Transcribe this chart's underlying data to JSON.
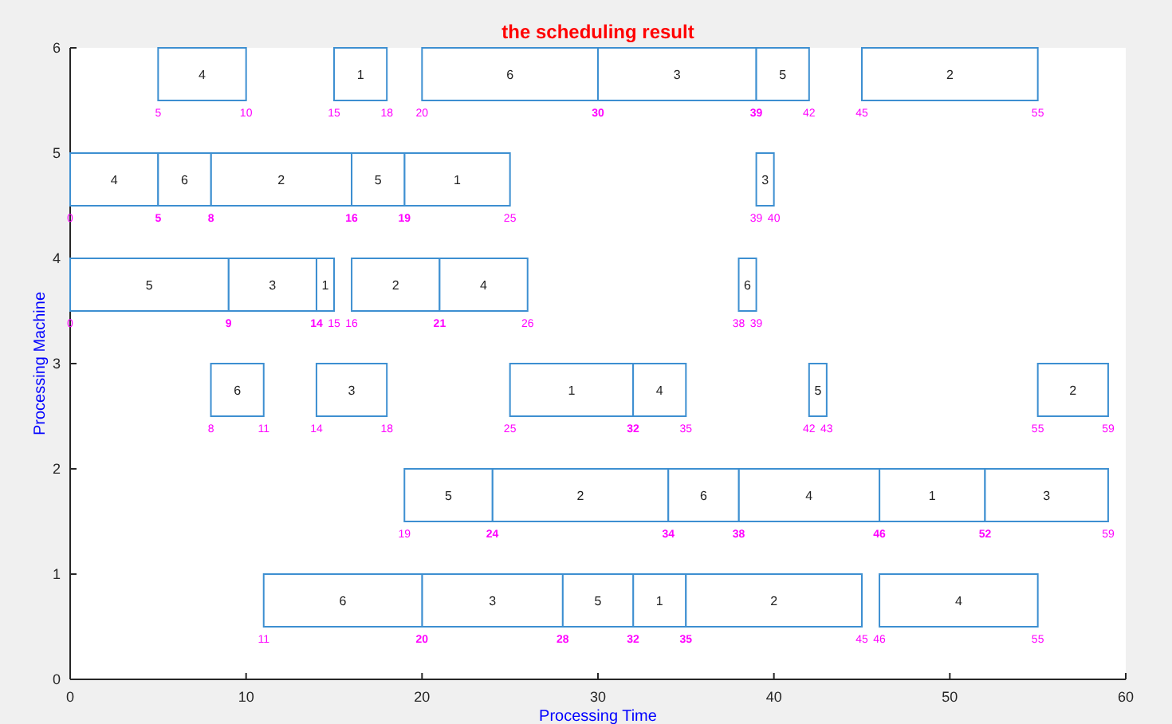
{
  "chart_data": {
    "type": "bar",
    "orientation": "horizontal",
    "title": "the scheduling result",
    "xlabel": "Processing Time",
    "ylabel": "Processing Machine",
    "categories": [
      "6",
      "5",
      "4",
      "3",
      "2",
      "1",
      "0"
    ],
    "xlim": [
      0,
      60
    ],
    "xticks": [
      0,
      10,
      20,
      30,
      40,
      50,
      60
    ],
    "grid": false,
    "series": [
      {
        "name": "1",
        "color": "#3d8fd1",
        "base": [
          15,
          19,
          14,
          25,
          46,
          32,
          null
        ],
        "values": [
          3,
          6,
          1,
          7,
          6,
          3,
          null
        ]
      },
      {
        "name": "2",
        "color": "#3d8fd1",
        "base": [
          45,
          8,
          16,
          55,
          24,
          35,
          null
        ],
        "values": [
          10,
          8,
          5,
          4,
          10,
          10,
          null
        ]
      },
      {
        "name": "3",
        "color": "#3d8fd1",
        "base": [
          30,
          39,
          9,
          14,
          52,
          20,
          null
        ],
        "values": [
          9,
          1,
          5,
          4,
          7,
          8,
          null
        ]
      },
      {
        "name": "4",
        "color": "#3d8fd1",
        "base": [
          5,
          0,
          21,
          32,
          38,
          46,
          null
        ],
        "values": [
          5,
          5,
          5,
          3,
          8,
          9,
          null
        ]
      },
      {
        "name": "5",
        "color": "#3d8fd1",
        "base": [
          39,
          16,
          0,
          42,
          19,
          28,
          null
        ],
        "values": [
          3,
          3,
          9,
          1,
          5,
          4,
          null
        ]
      },
      {
        "name": "6",
        "color": "#3d8fd1",
        "base": [
          20,
          5,
          38,
          8,
          34,
          11,
          null
        ],
        "values": [
          10,
          3,
          1,
          3,
          4,
          9,
          null
        ]
      }
    ],
    "annotations": [
      {
        "text": "5",
        "x": 5,
        "y": "6"
      },
      {
        "text": "10",
        "x": 10,
        "y": "6"
      },
      {
        "text": "15",
        "x": 15,
        "y": "6"
      },
      {
        "text": "18",
        "x": 18,
        "y": "6"
      },
      {
        "text": "20",
        "x": 20,
        "y": "6"
      },
      {
        "text": "30",
        "x": 30,
        "y": "6"
      },
      {
        "text": "39",
        "x": 39,
        "y": "6"
      },
      {
        "text": "42",
        "x": 42,
        "y": "6"
      },
      {
        "text": "45",
        "x": 45,
        "y": "6"
      },
      {
        "text": "55",
        "x": 55,
        "y": "6"
      },
      {
        "text": "0",
        "x": 0,
        "y": "5"
      },
      {
        "text": "5",
        "x": 5,
        "y": "5"
      },
      {
        "text": "8",
        "x": 8,
        "y": "5"
      },
      {
        "text": "16",
        "x": 16,
        "y": "5"
      },
      {
        "text": "19",
        "x": 19,
        "y": "5"
      },
      {
        "text": "25",
        "x": 25,
        "y": "5"
      },
      {
        "text": "39",
        "x": 39,
        "y": "5"
      },
      {
        "text": "40",
        "x": 40,
        "y": "5"
      },
      {
        "text": "0",
        "x": 0,
        "y": "4"
      },
      {
        "text": "9",
        "x": 9,
        "y": "4"
      },
      {
        "text": "14",
        "x": 14,
        "y": "4"
      },
      {
        "text": "15",
        "x": 15,
        "y": "4"
      },
      {
        "text": "16",
        "x": 16,
        "y": "4"
      },
      {
        "text": "21",
        "x": 21,
        "y": "4"
      },
      {
        "text": "26",
        "x": 26,
        "y": "4"
      },
      {
        "text": "38",
        "x": 38,
        "y": "4"
      },
      {
        "text": "39",
        "x": 39,
        "y": "4"
      },
      {
        "text": "8",
        "x": 8,
        "y": "3"
      },
      {
        "text": "11",
        "x": 11,
        "y": "3"
      },
      {
        "text": "14",
        "x": 14,
        "y": "3"
      },
      {
        "text": "18",
        "x": 18,
        "y": "3"
      },
      {
        "text": "25",
        "x": 25,
        "y": "3"
      },
      {
        "text": "32",
        "x": 32,
        "y": "3"
      },
      {
        "text": "35",
        "x": 35,
        "y": "3"
      },
      {
        "text": "42",
        "x": 42,
        "y": "3"
      },
      {
        "text": "43",
        "x": 43,
        "y": "3"
      },
      {
        "text": "55",
        "x": 55,
        "y": "3"
      },
      {
        "text": "59",
        "x": 59,
        "y": "3"
      },
      {
        "text": "19",
        "x": 19,
        "y": "2"
      },
      {
        "text": "24",
        "x": 24,
        "y": "2"
      },
      {
        "text": "34",
        "x": 34,
        "y": "2"
      },
      {
        "text": "38",
        "x": 38,
        "y": "2"
      },
      {
        "text": "46",
        "x": 46,
        "y": "2"
      },
      {
        "text": "52",
        "x": 52,
        "y": "2"
      },
      {
        "text": "59",
        "x": 59,
        "y": "2"
      },
      {
        "text": "11",
        "x": 11,
        "y": "1"
      },
      {
        "text": "20",
        "x": 20,
        "y": "1"
      },
      {
        "text": "28",
        "x": 28,
        "y": "1"
      },
      {
        "text": "32",
        "x": 32,
        "y": "1"
      },
      {
        "text": "35",
        "x": 35,
        "y": "1"
      },
      {
        "text": "45",
        "x": 45,
        "y": "1"
      },
      {
        "text": "46",
        "x": 46,
        "y": "1"
      },
      {
        "text": "55",
        "x": 55,
        "y": "1"
      }
    ]
  }
}
